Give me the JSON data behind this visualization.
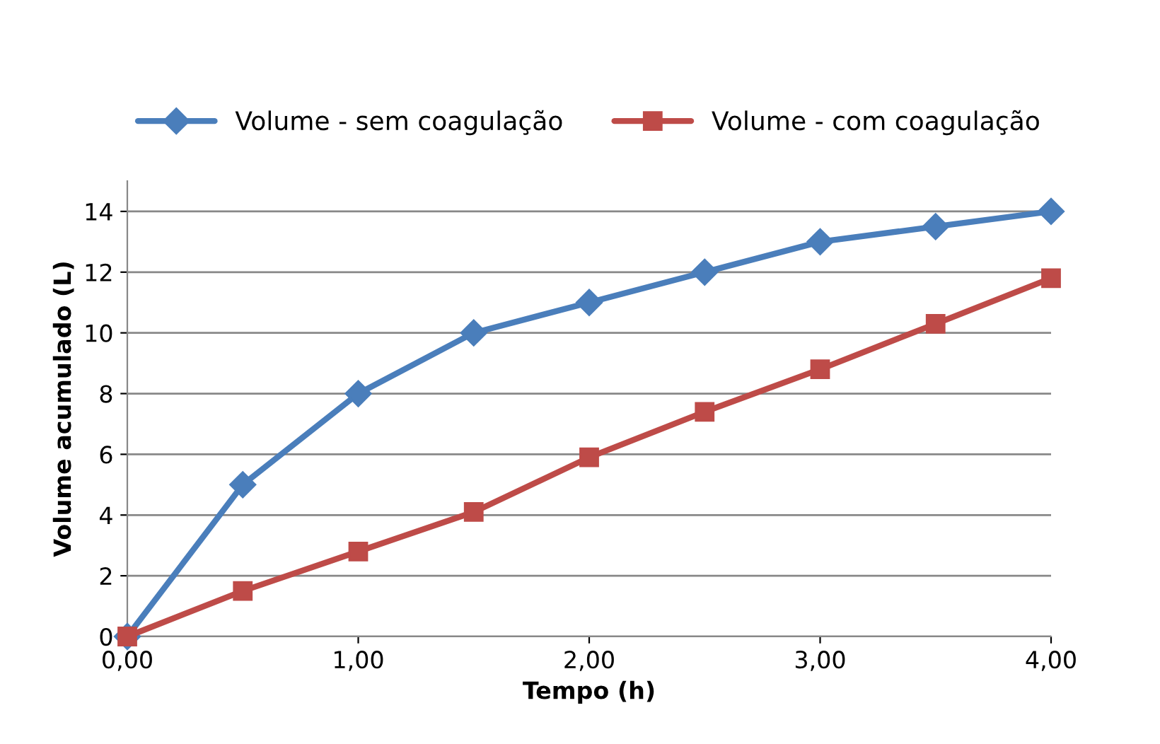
{
  "chart_data": {
    "type": "line",
    "xlabel": "Tempo (h)",
    "ylabel": "Volume acumulado (L)",
    "x": [
      0,
      0.5,
      1,
      1.5,
      2,
      2.5,
      3,
      3.5,
      4
    ],
    "series": [
      {
        "name": "Volume - sem coagulação",
        "color": "#4a7ebb",
        "marker": "diamond",
        "values": [
          0,
          5,
          8,
          10,
          11,
          12,
          13,
          13.5,
          14
        ]
      },
      {
        "name": "Volume - com coagulação",
        "color": "#be4b48",
        "marker": "square",
        "values": [
          0,
          1.5,
          2.8,
          4.1,
          5.9,
          7.4,
          8.8,
          10.3,
          11.8
        ]
      }
    ],
    "xlim": [
      0,
      4
    ],
    "xticks": [
      {
        "value": 0,
        "label": "0,00"
      },
      {
        "value": 1,
        "label": "1,00"
      },
      {
        "value": 2,
        "label": "2,00"
      },
      {
        "value": 3,
        "label": "3,00"
      },
      {
        "value": 4,
        "label": "4,00"
      }
    ],
    "ylim": [
      0,
      15
    ],
    "yticks": [
      0,
      2,
      4,
      6,
      8,
      10,
      12,
      14
    ],
    "grid": "y",
    "legend": "top",
    "line_style": "solid"
  }
}
